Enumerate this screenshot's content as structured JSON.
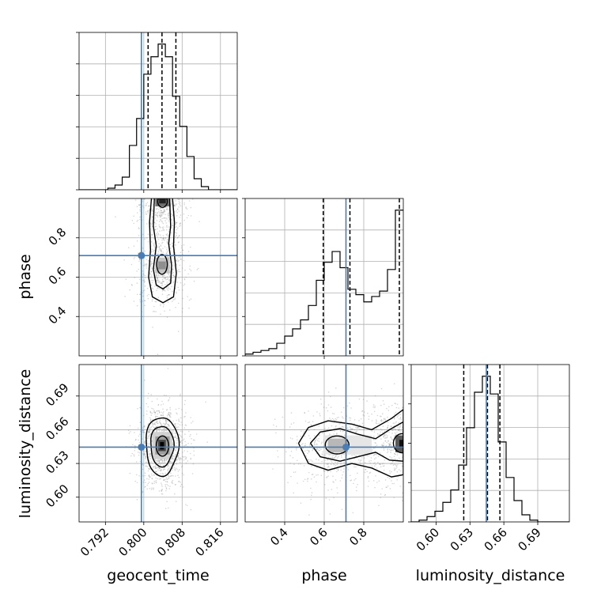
{
  "chart_data": {
    "type": "scatter",
    "description_type": "corner",
    "parameters": [
      "geocent_time",
      "phase",
      "luminosity_distance"
    ],
    "axis_labels": {
      "x": [
        "geocent_time",
        "phase",
        "luminosity_distance"
      ],
      "y": [
        "",
        "phase",
        "luminosity_distance"
      ]
    },
    "ranges": {
      "geocent_time": [
        0.7865,
        0.8195
      ],
      "phase": [
        0.2,
        1.0
      ],
      "luminosity_distance": [
        0.578,
        0.718
      ]
    },
    "ticks": {
      "geocent_time": [
        0.792,
        0.8,
        0.808,
        0.816
      ],
      "phase": [
        0.4,
        0.6,
        0.8
      ],
      "luminosity_distance": [
        0.6,
        0.63,
        0.66,
        0.69
      ]
    },
    "tick_labels": {
      "geocent_time": [
        "0.792",
        "0.800",
        "0.808",
        "0.816"
      ],
      "phase": [
        "0.4",
        "0.6",
        "0.8"
      ],
      "luminosity_distance": [
        "0.60",
        "0.63",
        "0.66",
        "0.69"
      ]
    },
    "truths": {
      "geocent_time": 0.7995,
      "phase": 0.71,
      "luminosity_distance": 0.6445
    },
    "quantiles": {
      "geocent_time": [
        0.8009,
        0.8038,
        0.8067
      ],
      "phase": [
        0.595,
        0.73,
        0.98
      ],
      "luminosity_distance": [
        0.6245,
        0.6455,
        0.6565
      ]
    },
    "histograms": {
      "geocent_time": {
        "edges": [
          0.7865,
          0.788,
          0.7895,
          0.791,
          0.7925,
          0.794,
          0.7955,
          0.797,
          0.7985,
          0.8,
          0.8015,
          0.803,
          0.8045,
          0.806,
          0.8075,
          0.809,
          0.8105,
          0.812,
          0.8135,
          0.815,
          0.8165,
          0.818,
          0.8195
        ],
        "counts": [
          0,
          0,
          0,
          0,
          0.01,
          0.03,
          0.08,
          0.28,
          0.45,
          0.73,
          0.84,
          0.92,
          0.84,
          0.59,
          0.4,
          0.21,
          0.07,
          0.02,
          0,
          0,
          0,
          0
        ]
      },
      "phase": {
        "edges": [
          0.2,
          0.24,
          0.28,
          0.32,
          0.36,
          0.4,
          0.44,
          0.48,
          0.52,
          0.56,
          0.6,
          0.64,
          0.68,
          0.72,
          0.76,
          0.8,
          0.84,
          0.88,
          0.92,
          0.96,
          1.0
        ],
        "counts": [
          0.01,
          0.02,
          0.03,
          0.04,
          0.07,
          0.11,
          0.15,
          0.2,
          0.28,
          0.42,
          0.52,
          0.58,
          0.49,
          0.37,
          0.34,
          0.3,
          0.33,
          0.36,
          0.48,
          0.81
        ]
      },
      "luminosity_distance": {
        "edges": [
          0.578,
          0.585,
          0.592,
          0.599,
          0.606,
          0.613,
          0.62,
          0.627,
          0.634,
          0.641,
          0.648,
          0.655,
          0.662,
          0.669,
          0.676,
          0.683,
          0.69,
          0.697,
          0.704,
          0.711,
          0.718
        ],
        "counts": [
          0,
          0.01,
          0.03,
          0.06,
          0.11,
          0.18,
          0.32,
          0.53,
          0.73,
          0.82,
          0.72,
          0.45,
          0.25,
          0.12,
          0.04,
          0.01,
          0,
          0,
          0,
          0
        ]
      }
    },
    "grid": true,
    "colors": {
      "truth": "#4a7db3",
      "histogram": "#000000",
      "quantile": "#000000",
      "grid": "#b0b0b0",
      "scatter": "#8a8a8a"
    }
  }
}
